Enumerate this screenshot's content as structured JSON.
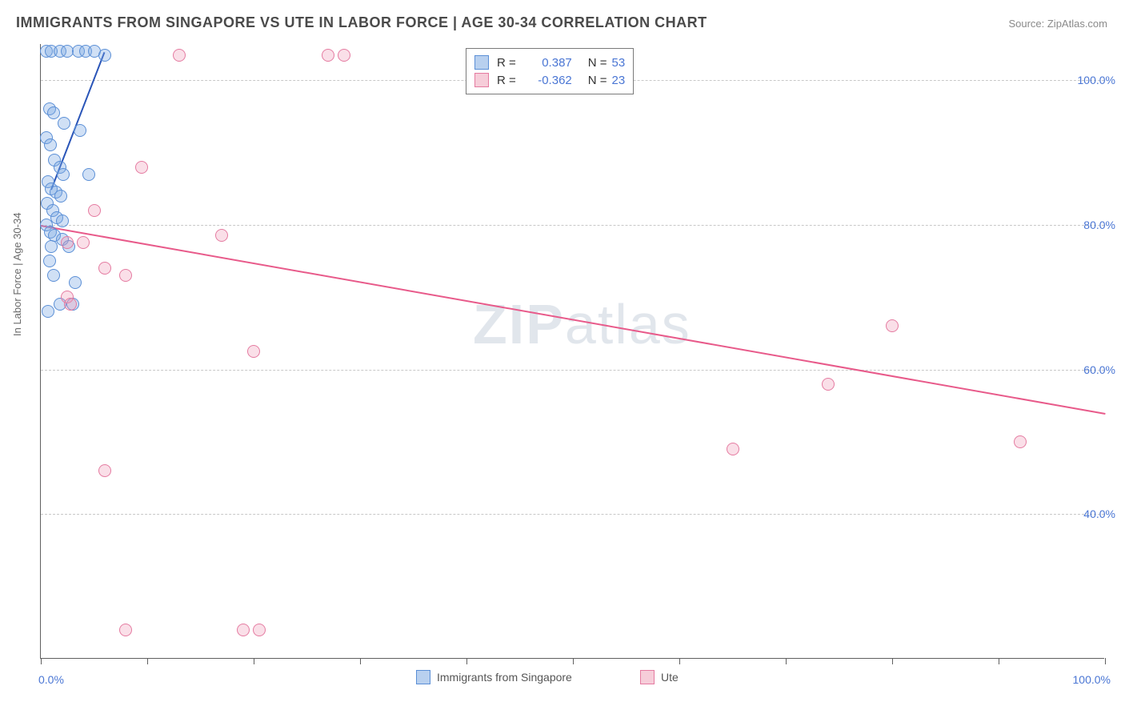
{
  "title": "IMMIGRANTS FROM SINGAPORE VS UTE IN LABOR FORCE | AGE 30-34 CORRELATION CHART",
  "source_label": "Source: ",
  "source_value": "ZipAtlas.com",
  "ylabel": "In Labor Force | Age 30-34",
  "watermark_bold": "ZIP",
  "watermark_rest": "atlas",
  "chart": {
    "type": "scatter",
    "background_color": "#ffffff",
    "grid_color": "#c8c8c8",
    "axis_color": "#606060",
    "xlim": [
      0,
      100
    ],
    "ylim": [
      20,
      105
    ],
    "ytick_positions": [
      40,
      60,
      80,
      100
    ],
    "ytick_labels": [
      "40.0%",
      "60.0%",
      "80.0%",
      "100.0%"
    ],
    "xtick_positions": [
      0,
      10,
      20,
      30,
      40,
      50,
      60,
      70,
      80,
      90,
      100
    ],
    "x_axis_end_labels": {
      "left": "0.0%",
      "right": "100.0%"
    },
    "marker_radius": 8,
    "marker_stroke_width": 1.5,
    "series": [
      {
        "id": "singapore",
        "label": "Immigrants from Singapore",
        "fill": "rgba(120,165,225,0.35)",
        "stroke": "#5b8fd6",
        "legend_sq_fill": "#b8d0ef",
        "legend_sq_stroke": "#5b8fd6",
        "r_value": "0.387",
        "n_value": "53",
        "trend": {
          "x1": 1,
          "y1": 85,
          "x2": 6,
          "y2": 104,
          "color": "#2a55b8",
          "width": 2
        },
        "points": [
          [
            0.5,
            104
          ],
          [
            1.0,
            104
          ],
          [
            1.8,
            104
          ],
          [
            2.5,
            104
          ],
          [
            3.5,
            104
          ],
          [
            4.2,
            104
          ],
          [
            5.0,
            104
          ],
          [
            6.0,
            103.5
          ],
          [
            0.8,
            96
          ],
          [
            1.2,
            95.5
          ],
          [
            2.2,
            94
          ],
          [
            3.7,
            93
          ],
          [
            0.5,
            92
          ],
          [
            0.9,
            91
          ],
          [
            1.3,
            89
          ],
          [
            1.8,
            88
          ],
          [
            2.1,
            87
          ],
          [
            4.5,
            87
          ],
          [
            0.7,
            86
          ],
          [
            1.0,
            85
          ],
          [
            1.4,
            84.5
          ],
          [
            1.9,
            84
          ],
          [
            0.6,
            83
          ],
          [
            1.1,
            82
          ],
          [
            1.5,
            81
          ],
          [
            2.0,
            80.5
          ],
          [
            0.5,
            80
          ],
          [
            0.9,
            79
          ],
          [
            1.3,
            78.5
          ],
          [
            2.0,
            78
          ],
          [
            1.0,
            77
          ],
          [
            2.6,
            77
          ],
          [
            0.8,
            75
          ],
          [
            1.2,
            73
          ],
          [
            3.2,
            72
          ],
          [
            1.8,
            69
          ],
          [
            3.0,
            69
          ],
          [
            0.7,
            68
          ]
        ]
      },
      {
        "id": "ute",
        "label": "Ute",
        "fill": "rgba(240,150,180,0.30)",
        "stroke": "#e57ba1",
        "legend_sq_fill": "#f6cdd9",
        "legend_sq_stroke": "#e57ba1",
        "r_value": "-0.362",
        "n_value": "23",
        "trend": {
          "x1": 0,
          "y1": 80,
          "x2": 100,
          "y2": 54,
          "color": "#e85a8a",
          "width": 2
        },
        "points": [
          [
            13,
            103.5
          ],
          [
            27,
            103.5
          ],
          [
            28.5,
            103.5
          ],
          [
            9.5,
            88
          ],
          [
            5,
            82
          ],
          [
            17,
            78.5
          ],
          [
            2.5,
            77.5
          ],
          [
            4,
            77.5
          ],
          [
            6,
            74
          ],
          [
            8,
            73
          ],
          [
            2.5,
            70
          ],
          [
            2.8,
            69
          ],
          [
            20,
            62.5
          ],
          [
            80,
            66
          ],
          [
            74,
            58
          ],
          [
            65,
            49
          ],
          [
            92,
            50
          ],
          [
            6,
            46
          ],
          [
            8,
            24
          ],
          [
            19,
            24
          ],
          [
            20.5,
            24
          ]
        ]
      }
    ],
    "legend_top": {
      "r_label": "R =",
      "n_label": "N =",
      "r_color": "#e85a8a",
      "value_color": "#4a76d4",
      "text_color": "#333333"
    }
  }
}
